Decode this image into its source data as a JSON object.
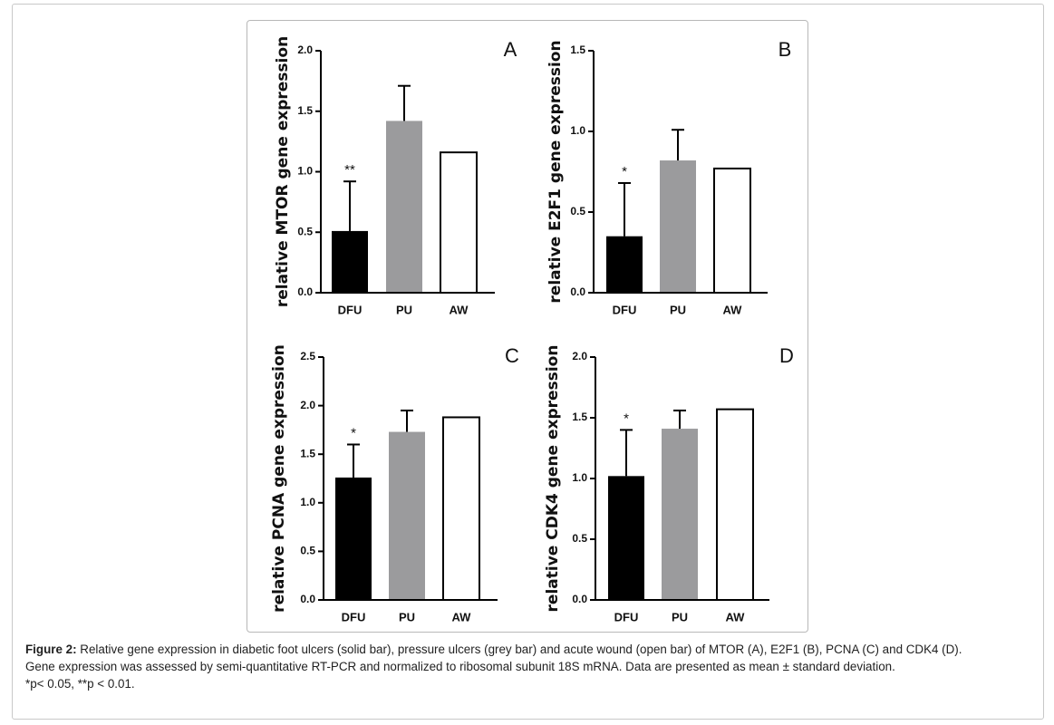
{
  "caption": {
    "figure_label": "Figure 2:",
    "line1": "Relative gene expression in diabetic foot ulcers (solid bar), pressure ulcers (grey bar) and acute wound (open bar) of MTOR (A), E2F1 (B), PCNA (C) and CDK4 (D).",
    "line2": "Gene expression was assessed by semi-quantitative RT-PCR and normalized to ribosomal subunit 18S mRNA. Data are presented as mean ± standard deviation.",
    "line3": "*p< 0.05, **p < 0.01."
  },
  "colors": {
    "dfu": "#000000",
    "pu": "#9b9b9d",
    "aw": "#ffffff",
    "axis": "#000000"
  },
  "chart_data": [
    {
      "type": "bar",
      "panel": "A",
      "categories": [
        "DFU",
        "PU",
        "AW"
      ],
      "values": [
        0.51,
        1.42,
        1.16
      ],
      "error": [
        0.41,
        0.29,
        0
      ],
      "significance": [
        "**",
        "",
        ""
      ],
      "ylabel": "relative MTOR gene expression",
      "ylim": [
        0,
        2.0
      ],
      "yticks": [
        0,
        0.5,
        1.0,
        1.5,
        2.0
      ],
      "ytick_labels": [
        "0.0",
        "0.5",
        "1.0",
        "1.5",
        "2.0"
      ]
    },
    {
      "type": "bar",
      "panel": "B",
      "categories": [
        "DFU",
        "PU",
        "AW"
      ],
      "values": [
        0.35,
        0.82,
        0.77
      ],
      "error": [
        0.33,
        0.19,
        0
      ],
      "significance": [
        "*",
        "",
        ""
      ],
      "ylabel": "relative E2F1 gene expression",
      "ylim": [
        0,
        1.5
      ],
      "yticks": [
        0,
        0.5,
        1.0,
        1.5
      ],
      "ytick_labels": [
        "0.0",
        "0.5",
        "1.0",
        "1.5"
      ]
    },
    {
      "type": "bar",
      "panel": "C",
      "categories": [
        "DFU",
        "PU",
        "AW"
      ],
      "values": [
        1.26,
        1.73,
        1.88
      ],
      "error": [
        0.34,
        0.22,
        0
      ],
      "significance": [
        "*",
        "",
        ""
      ],
      "ylabel": "relative PCNA gene expression",
      "ylim": [
        0,
        2.5
      ],
      "yticks": [
        0,
        0.5,
        1.0,
        1.5,
        2.0,
        2.5
      ],
      "ytick_labels": [
        "0.0",
        "0.5",
        "1.0",
        "1.5",
        "2.0",
        "2.5"
      ]
    },
    {
      "type": "bar",
      "panel": "D",
      "categories": [
        "DFU",
        "PU",
        "AW"
      ],
      "values": [
        1.02,
        1.41,
        1.57
      ],
      "error": [
        0.38,
        0.15,
        0
      ],
      "significance": [
        "*",
        "",
        ""
      ],
      "ylabel": "relative CDK4 gene expression",
      "ylim": [
        0,
        2.0
      ],
      "yticks": [
        0,
        0.5,
        1.0,
        1.5,
        2.0
      ],
      "ytick_labels": [
        "0.0",
        "0.5",
        "1.0",
        "1.5",
        "2.0"
      ]
    }
  ]
}
